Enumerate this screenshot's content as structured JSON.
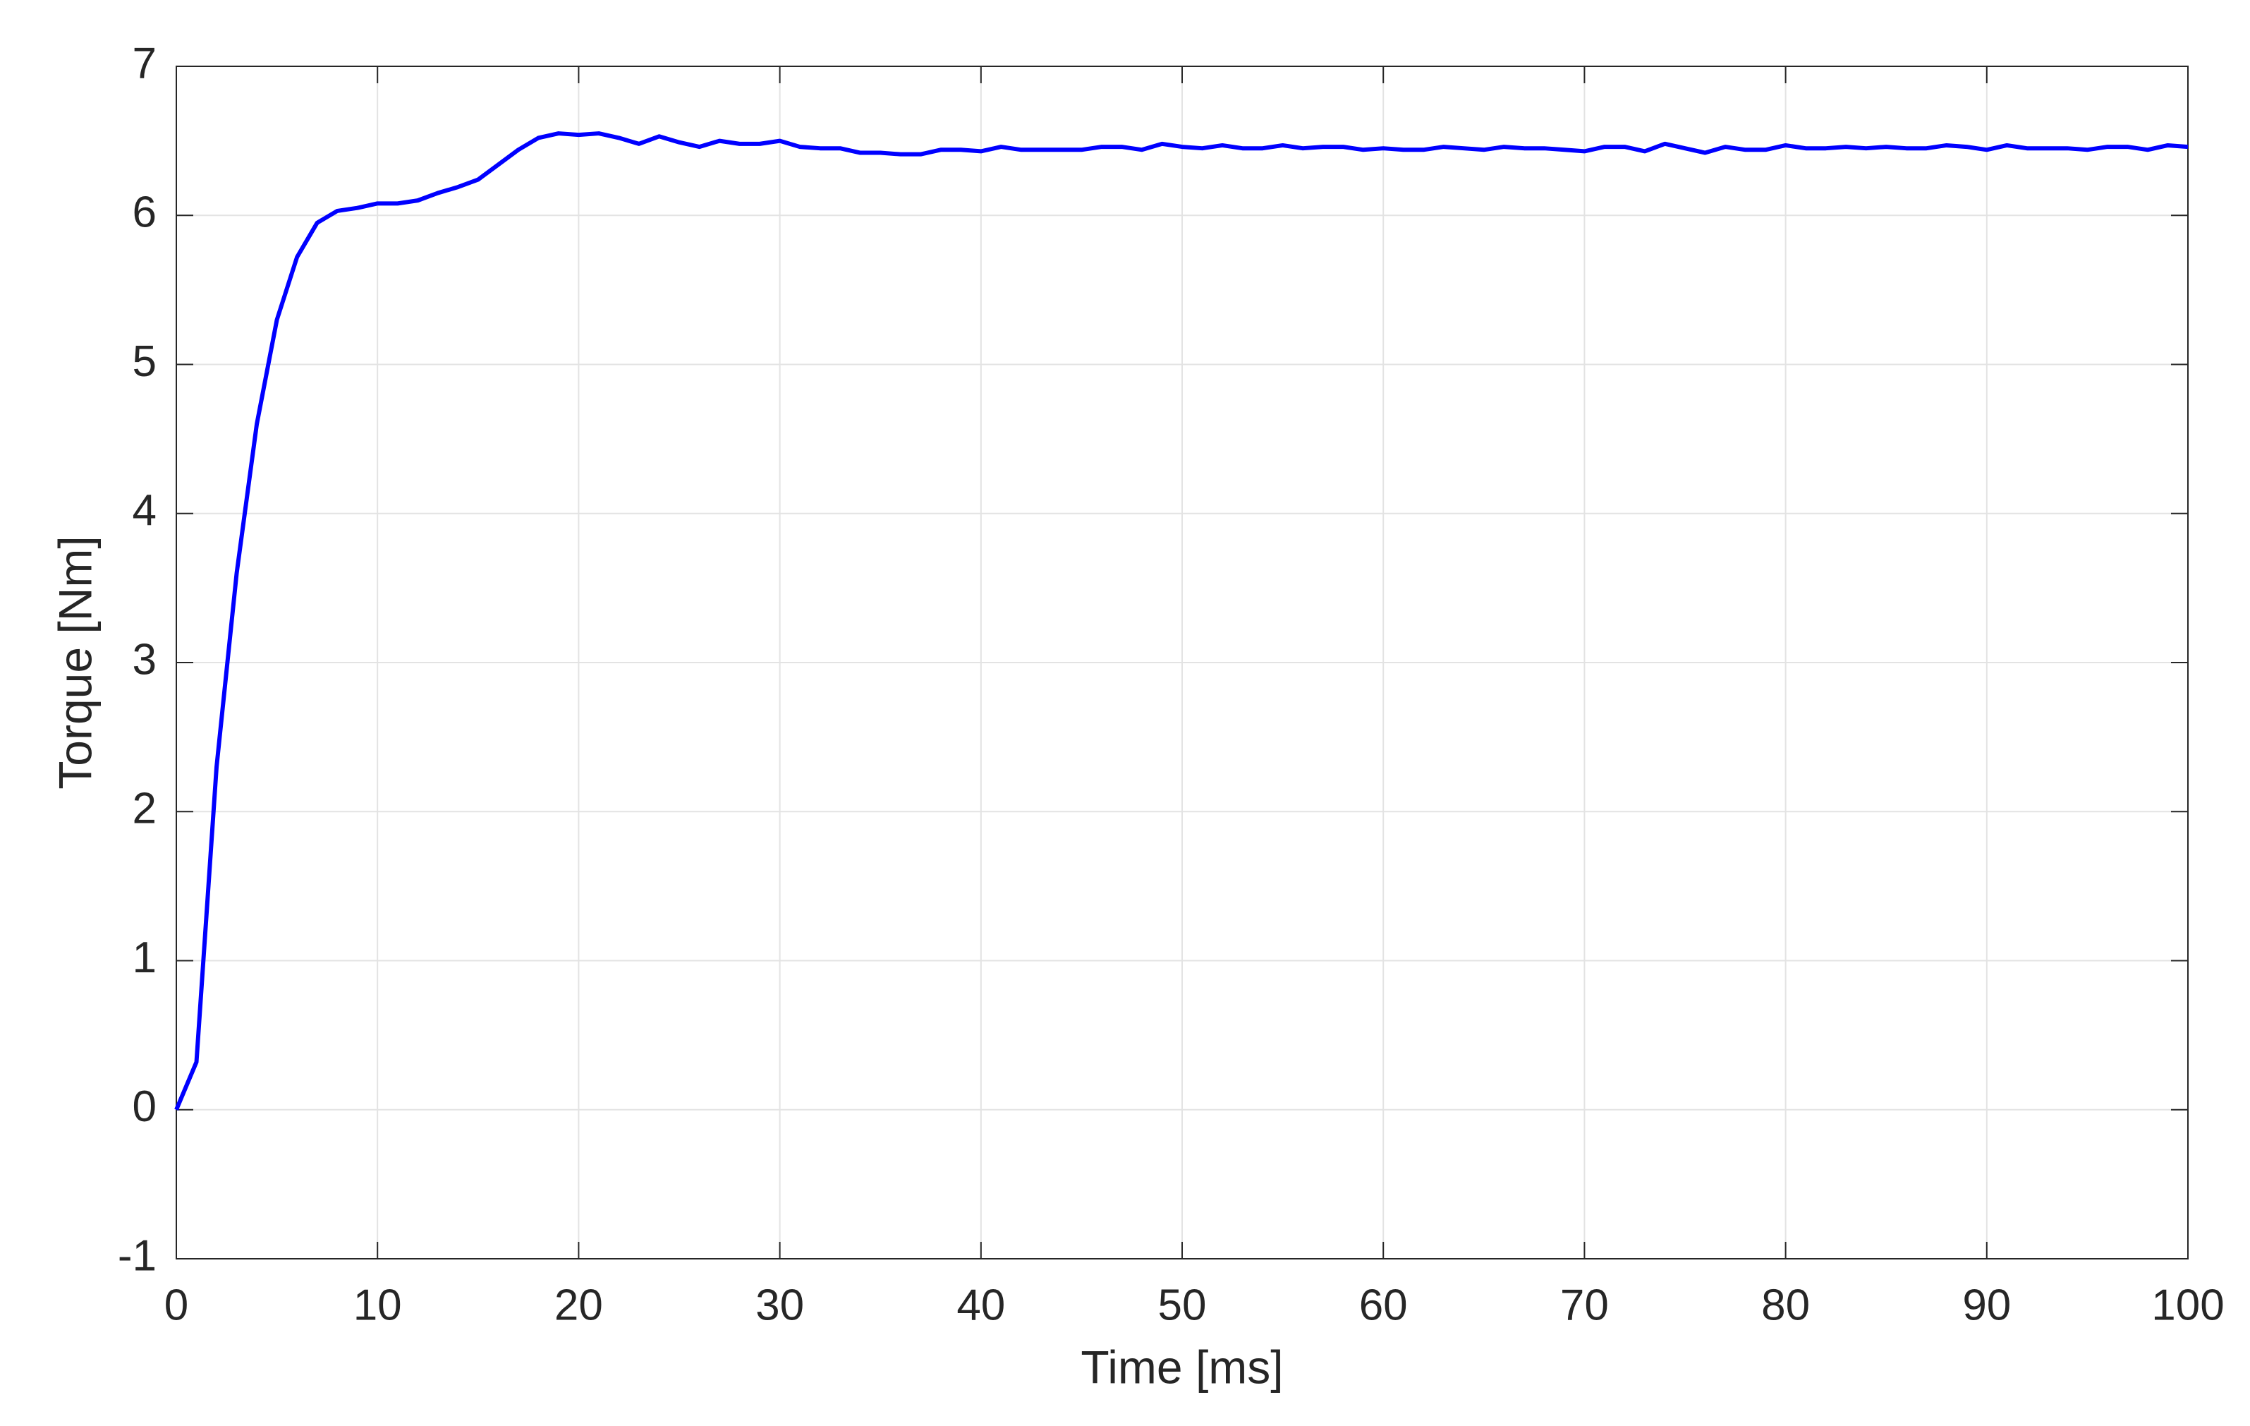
{
  "chart_data": {
    "type": "line",
    "x_label": "Time [ms]",
    "y_label": "Torque [Nm]",
    "x": [
      0,
      1,
      2,
      3,
      4,
      5,
      6,
      7,
      8,
      9,
      10,
      11,
      12,
      13,
      14,
      15,
      16,
      17,
      18,
      19,
      20,
      21,
      22,
      23,
      24,
      25,
      26,
      27,
      28,
      29,
      30,
      31,
      32,
      33,
      34,
      35,
      36,
      37,
      38,
      39,
      40,
      41,
      42,
      43,
      44,
      45,
      46,
      47,
      48,
      49,
      50,
      51,
      52,
      53,
      54,
      55,
      56,
      57,
      58,
      59,
      60,
      61,
      62,
      63,
      64,
      65,
      66,
      67,
      68,
      69,
      70,
      71,
      72,
      73,
      74,
      75,
      76,
      77,
      78,
      79,
      80,
      81,
      82,
      83,
      84,
      85,
      86,
      87,
      88,
      89,
      90,
      91,
      92,
      93,
      94,
      95,
      96,
      97,
      98,
      99,
      100
    ],
    "series": [
      {
        "color": "#0000ff",
        "values": [
          0,
          0.32,
          2.3,
          3.6,
          4.6,
          5.3,
          5.72,
          5.95,
          6.03,
          6.05,
          6.08,
          6.08,
          6.1,
          6.15,
          6.19,
          6.24,
          6.34,
          6.44,
          6.52,
          6.55,
          6.54,
          6.55,
          6.52,
          6.48,
          6.53,
          6.49,
          6.46,
          6.5,
          6.48,
          6.48,
          6.5,
          6.46,
          6.45,
          6.45,
          6.42,
          6.42,
          6.41,
          6.41,
          6.44,
          6.44,
          6.43,
          6.46,
          6.44,
          6.44,
          6.44,
          6.44,
          6.46,
          6.46,
          6.44,
          6.48,
          6.46,
          6.45,
          6.47,
          6.45,
          6.45,
          6.47,
          6.45,
          6.46,
          6.46,
          6.44,
          6.45,
          6.44,
          6.44,
          6.46,
          6.45,
          6.44,
          6.46,
          6.45,
          6.45,
          6.44,
          6.43,
          6.46,
          6.46,
          6.43,
          6.48,
          6.45,
          6.42,
          6.46,
          6.44,
          6.44,
          6.47,
          6.45,
          6.45,
          6.46,
          6.45,
          6.46,
          6.45,
          6.45,
          6.47,
          6.46,
          6.44,
          6.47,
          6.45,
          6.45,
          6.45,
          6.44,
          6.46,
          6.46,
          6.44,
          6.47,
          6.46
        ]
      }
    ],
    "xlim": [
      0,
      100
    ],
    "ylim": [
      -1,
      7
    ],
    "xticks": [
      0,
      10,
      20,
      30,
      40,
      50,
      60,
      70,
      80,
      90,
      100
    ],
    "yticks": [
      -1,
      0,
      1,
      2,
      3,
      4,
      5,
      6,
      7
    ],
    "grid": true
  }
}
